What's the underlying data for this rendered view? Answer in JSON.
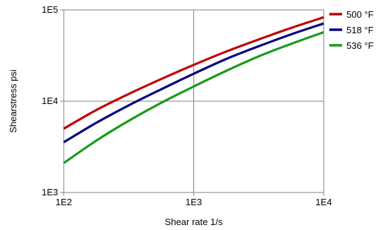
{
  "chart_data": {
    "type": "line",
    "title": "",
    "xlabel": "Shear rate  1/s",
    "ylabel": "Shearstress  psi",
    "x_scale": "log",
    "y_scale": "log",
    "xlim": [
      100,
      10000
    ],
    "ylim": [
      1000,
      100000
    ],
    "x_ticks": [
      100,
      1000,
      10000
    ],
    "y_ticks": [
      1000,
      10000,
      100000
    ],
    "x_tick_labels": [
      "1E2",
      "1E3",
      "1E4"
    ],
    "y_tick_labels": [
      "1E3",
      "1E4",
      "1E5"
    ],
    "grid": true,
    "legend": "right",
    "series": [
      {
        "name": "500 °F",
        "color": "#c00000",
        "x": [
          100,
          178,
          316,
          562,
          1000,
          1778,
          3162,
          5623,
          10000
        ],
        "y": [
          5000,
          8000,
          12000,
          17500,
          25000,
          35000,
          47500,
          63500,
          83000
        ]
      },
      {
        "name": "518 °F",
        "color": "#000080",
        "x": [
          100,
          178,
          316,
          562,
          1000,
          1778,
          3162,
          5623,
          10000
        ],
        "y": [
          3550,
          5800,
          9000,
          13500,
          20000,
          29000,
          40000,
          54000,
          71000
        ]
      },
      {
        "name": "536 °F",
        "color": "#1a9a1a",
        "x": [
          100,
          178,
          316,
          562,
          1000,
          1778,
          3162,
          5623,
          10000
        ],
        "y": [
          2100,
          3700,
          6100,
          9600,
          14500,
          21500,
          31000,
          42500,
          57000
        ]
      }
    ]
  }
}
